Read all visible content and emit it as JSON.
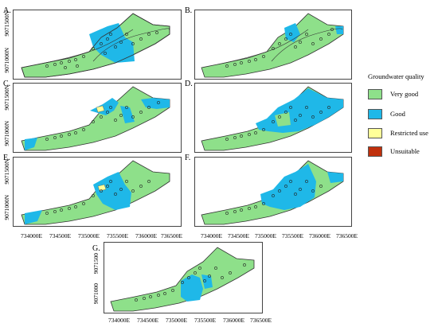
{
  "panels": [
    {
      "id": "A",
      "label": "A.",
      "left": "Very good / Good mix"
    },
    {
      "id": "B",
      "label": "B."
    },
    {
      "id": "C",
      "label": "C."
    },
    {
      "id": "D",
      "label": "D."
    },
    {
      "id": "E",
      "label": "E."
    },
    {
      "id": "F",
      "label": "F."
    },
    {
      "id": "G",
      "label": "G."
    }
  ],
  "axes": {
    "y_top": "9071500N",
    "y_bottom": "9071000N",
    "y_top_g": "9071500",
    "y_bottom_g": "9071000",
    "x_ticks": [
      "734000E",
      "734500E",
      "735000E",
      "735500E",
      "736000E",
      "736500E"
    ]
  },
  "legend": {
    "title": "Groundwater quality",
    "items": [
      {
        "label": "Very good",
        "color": "#8ee08a"
      },
      {
        "label": "Good",
        "color": "#1fb8e8"
      },
      {
        "label": "Restricted use",
        "color": "#ffff99"
      },
      {
        "label": "Unsuitable",
        "color": "#c0300c"
      }
    ]
  },
  "colors": {
    "very_good": "#8ee08a",
    "good": "#1fb8e8",
    "restricted": "#ffff99",
    "unsuitable": "#c0300c",
    "outline": "#333333"
  }
}
